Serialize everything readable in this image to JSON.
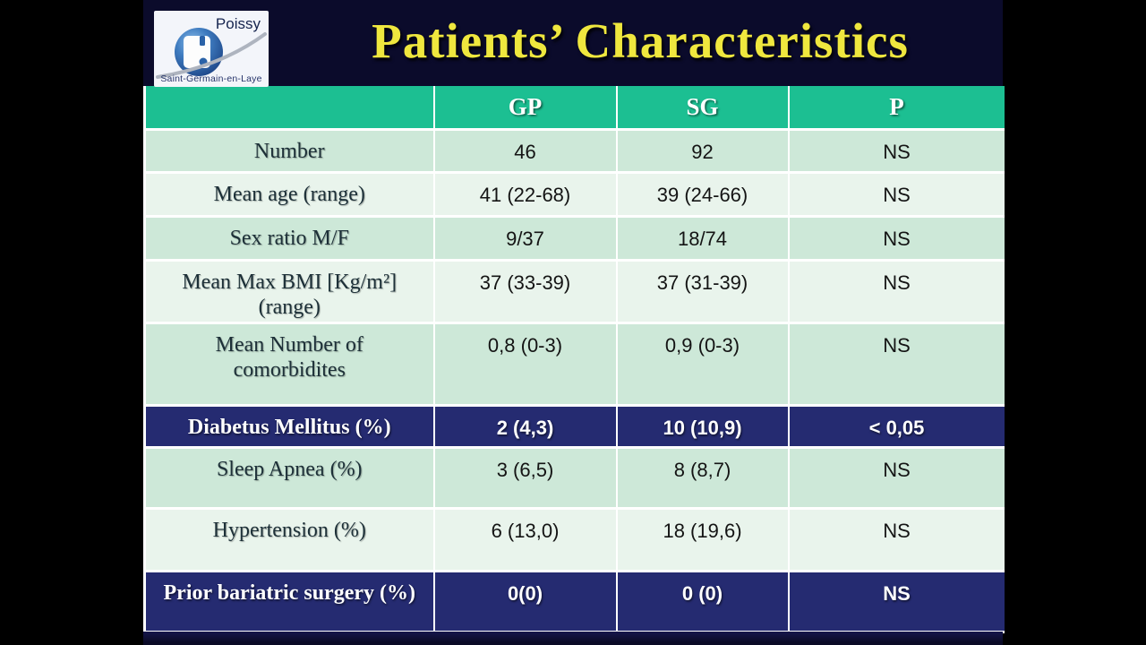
{
  "slide": {
    "title": "Patients’ Characteristics",
    "logo": {
      "city": "Poissy",
      "subtitle": "Saint-Germain-en-Laye"
    }
  },
  "table": {
    "columns": [
      "",
      "GP",
      "SG",
      "P"
    ],
    "rows": [
      {
        "label": "Number",
        "gp": "46",
        "sg": "92",
        "p": "NS",
        "tone": "mint"
      },
      {
        "label": "Mean age (range)",
        "gp": "41 (22-68)",
        "sg": "39 (24-66)",
        "p": "NS",
        "tone": "light"
      },
      {
        "label": "Sex ratio M/F",
        "gp": "9/37",
        "sg": "18/74",
        "p": "NS",
        "tone": "mint"
      },
      {
        "label": "Mean Max BMI [Kg/m²]\n(range)",
        "gp": "37 (33-39)",
        "sg": "37 (31-39)",
        "p": "NS",
        "tone": "light"
      },
      {
        "label": "Mean Number of\ncomorbidites",
        "gp": "0,8 (0-3)",
        "sg": "0,9 (0-3)",
        "p": "NS",
        "tone": "mint"
      },
      {
        "label": "Diabetus Mellitus (%)",
        "gp": "2 (4,3)",
        "sg": "10 (10,9)",
        "p": "< 0,05",
        "tone": "navy"
      },
      {
        "label": "Sleep Apnea (%)",
        "gp": "3 (6,5)",
        "sg": "8 (8,7)",
        "p": "NS",
        "tone": "mint"
      },
      {
        "label": "Hypertension (%)",
        "gp": "6 (13,0)",
        "sg": "18 (19,6)",
        "p": "NS",
        "tone": "light"
      },
      {
        "label": "Prior bariatric surgery (%)",
        "gp": "0(0)",
        "sg": "0 (0)",
        "p": "NS",
        "tone": "navy"
      }
    ]
  },
  "colors": {
    "slide_bg": "#0b0b2b",
    "title_yellow": "#efe73e",
    "header_green": "#1cbf92",
    "row_mint": "#cde8d8",
    "row_light": "#e9f4ec",
    "row_navy": "#252b71"
  }
}
